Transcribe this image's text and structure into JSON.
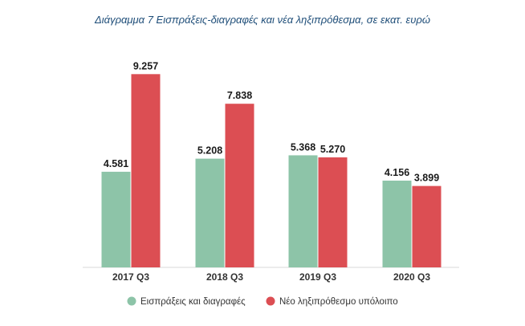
{
  "chart_data": {
    "type": "bar",
    "title": "Διάγραμμα 7 Εισπράξεις-διαγραφές και νέα ληξιπρόθεσμα, σε εκατ. ευρώ",
    "categories": [
      "2017 Q3",
      "2018 Q3",
      "2019 Q3",
      "2020 Q3"
    ],
    "series": [
      {
        "name": "Εισπράξεις και διαγραφές",
        "values": [
          4581,
          5208,
          5368,
          4156
        ],
        "labels": [
          "4.581",
          "5.208",
          "5.368",
          "4.156"
        ],
        "color": "#8dc4a8"
      },
      {
        "name": "Νέο ληξιπρόθεσμο υπόλοιπο",
        "values": [
          9257,
          7838,
          5270,
          3899
        ],
        "labels": [
          "9.257",
          "7.838",
          "5.270",
          "3.899"
        ],
        "color": "#dc4e53"
      }
    ],
    "xlabel": "",
    "ylabel": "",
    "ylim": [
      0,
      9500
    ],
    "grid": false,
    "legend_position": "bottom"
  }
}
